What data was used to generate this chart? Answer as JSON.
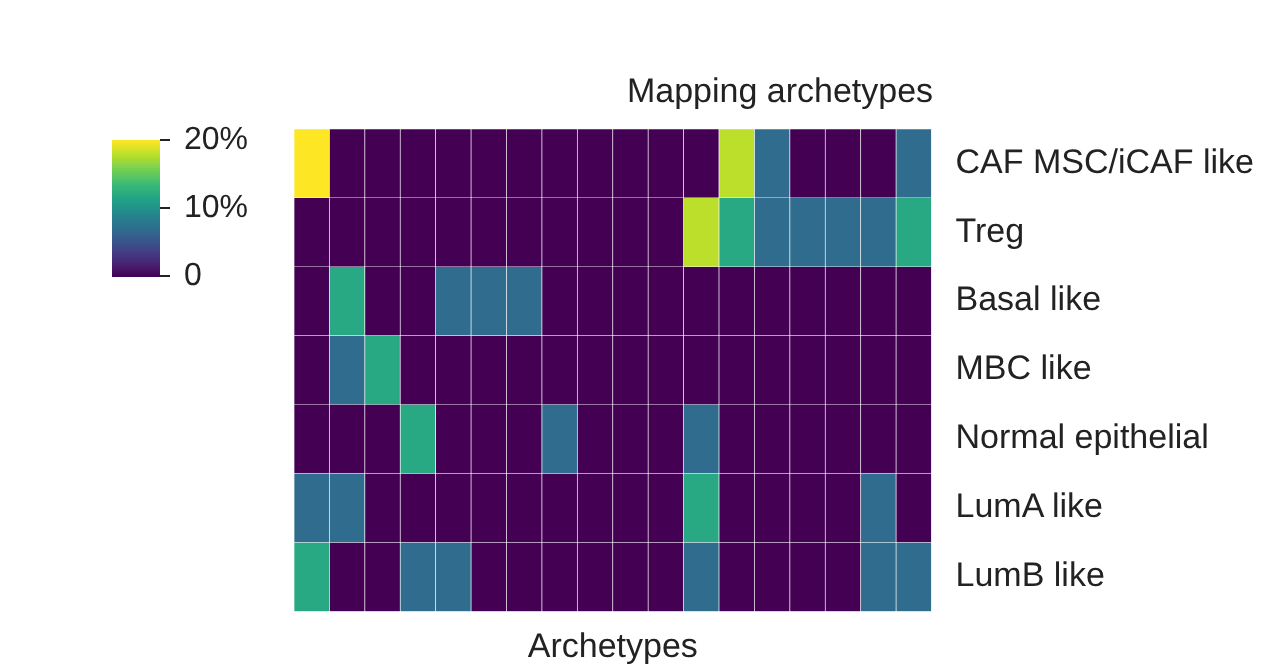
{
  "chart_data": {
    "type": "heatmap",
    "title": "Mapping archetypes",
    "xlabel": "Archetypes",
    "categories": [
      null,
      null,
      null,
      null,
      null,
      null,
      null,
      null,
      null,
      null,
      null,
      null,
      null,
      null,
      null,
      null,
      null,
      null
    ],
    "y_categories": [
      "CAF MSC/iCAF like",
      "Treg",
      "Basal like",
      "MBC like",
      "Normal epithelial",
      "LumA like",
      "LumB like"
    ],
    "cells": [
      [
        20,
        0,
        0,
        0,
        0,
        0,
        0,
        0,
        0,
        0,
        0,
        0,
        18,
        7,
        0,
        0,
        0,
        7
      ],
      [
        0,
        0,
        0,
        0,
        0,
        0,
        0,
        0,
        0,
        0,
        0,
        18,
        12,
        7,
        7,
        7,
        7,
        12
      ],
      [
        0,
        12,
        0,
        0,
        7,
        7,
        7,
        0,
        0,
        0,
        0,
        0,
        0,
        0,
        0,
        0,
        0,
        0
      ],
      [
        0,
        7,
        12,
        0,
        0,
        0,
        0,
        0,
        0,
        0,
        0,
        0,
        0,
        0,
        0,
        0,
        0,
        0
      ],
      [
        0,
        0,
        0,
        12,
        0,
        0,
        0,
        7,
        0,
        0,
        0,
        7,
        0,
        0,
        0,
        0,
        0,
        0
      ],
      [
        7,
        7,
        0,
        0,
        0,
        0,
        0,
        0,
        0,
        0,
        0,
        12,
        0,
        0,
        0,
        0,
        7,
        0
      ],
      [
        12,
        0,
        0,
        7,
        7,
        0,
        0,
        0,
        0,
        0,
        0,
        7,
        0,
        0,
        0,
        0,
        7,
        7
      ]
    ],
    "clim": [
      0,
      20
    ],
    "cticks": [
      {
        "value": 0,
        "label": "0"
      },
      {
        "value": 10,
        "label": "10%"
      },
      {
        "value": 20,
        "label": "20%"
      }
    ]
  }
}
